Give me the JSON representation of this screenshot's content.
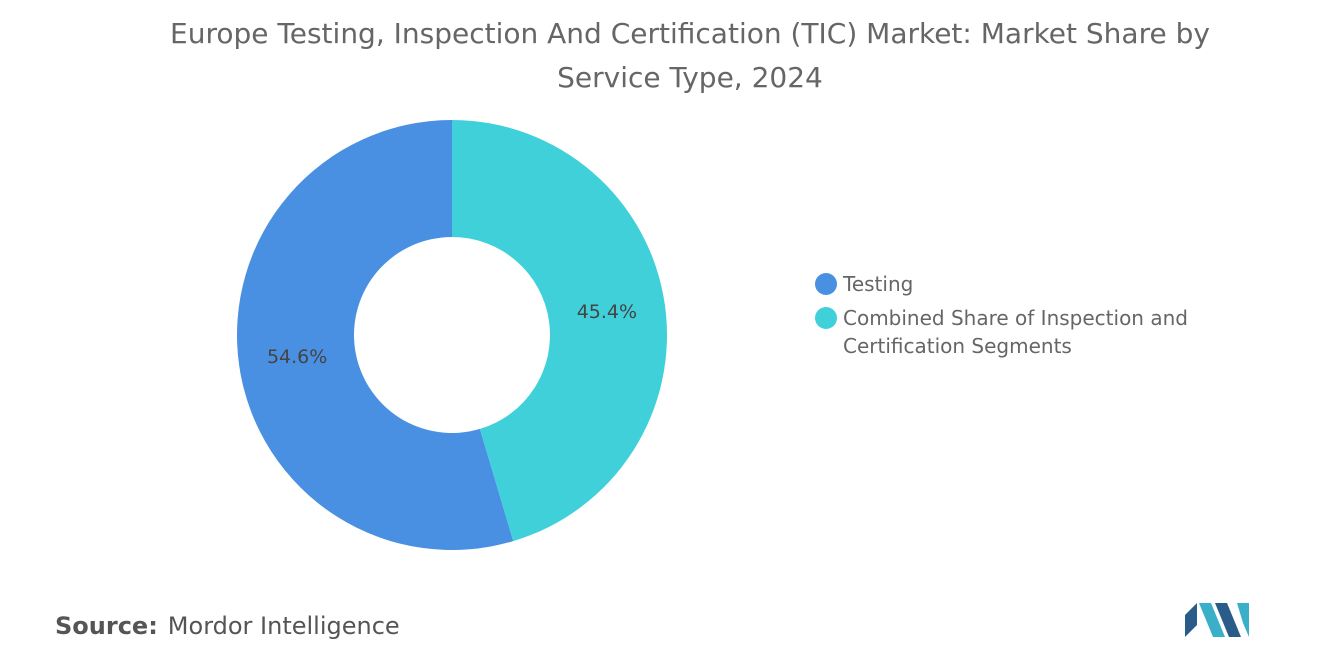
{
  "chart_data": {
    "type": "donut",
    "title": "Europe Testing, Inspection And Certification (TIC) Market: Market Share by Service Type, 2024",
    "categories": [
      "Testing",
      "Combined Share of Inspection and Certification Segments"
    ],
    "values": [
      54.6,
      45.4
    ],
    "value_labels": [
      "54.6%",
      "45.4%"
    ],
    "colors": [
      "#4a90e2",
      "#40d0da"
    ],
    "legend": "right"
  },
  "source": {
    "label": "Source:",
    "text": "Mordor Intelligence"
  }
}
